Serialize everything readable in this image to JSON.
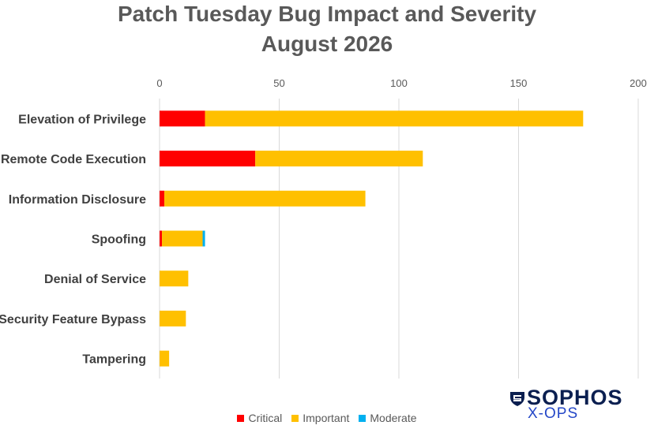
{
  "colors": {
    "critical": "#ff0000",
    "important": "#ffc000",
    "moderate": "#00b0f0",
    "grid": "#d9d9d9",
    "logo_dark": "#0b1f50",
    "logo_blue": "#2447c7"
  },
  "logo": {
    "word": "SOPHOS",
    "sub": "X-OPS",
    "icon": "sophos-shield-icon"
  },
  "chart_data": {
    "type": "bar",
    "orientation": "horizontal",
    "stacked": true,
    "title": [
      "Patch Tuesday Bug Impact and Severity",
      "August 2026"
    ],
    "xlim": [
      0,
      200
    ],
    "x_ticks": [
      0,
      50,
      100,
      150,
      200
    ],
    "x_axis_position": "top",
    "grid": true,
    "legend_position": "bottom",
    "categories": [
      "Elevation of Privilege",
      "Remote Code Execution",
      "Information Disclosure",
      "Spoofing",
      "Denial of Service",
      "Security Feature Bypass",
      "Tampering"
    ],
    "series": [
      {
        "name": "Critical",
        "values": [
          19,
          40,
          2,
          1,
          0,
          0,
          0
        ]
      },
      {
        "name": "Important",
        "values": [
          158,
          70,
          84,
          17,
          12,
          11,
          4
        ]
      },
      {
        "name": "Moderate",
        "values": [
          0,
          0,
          0,
          1,
          0,
          0,
          0
        ]
      }
    ]
  }
}
